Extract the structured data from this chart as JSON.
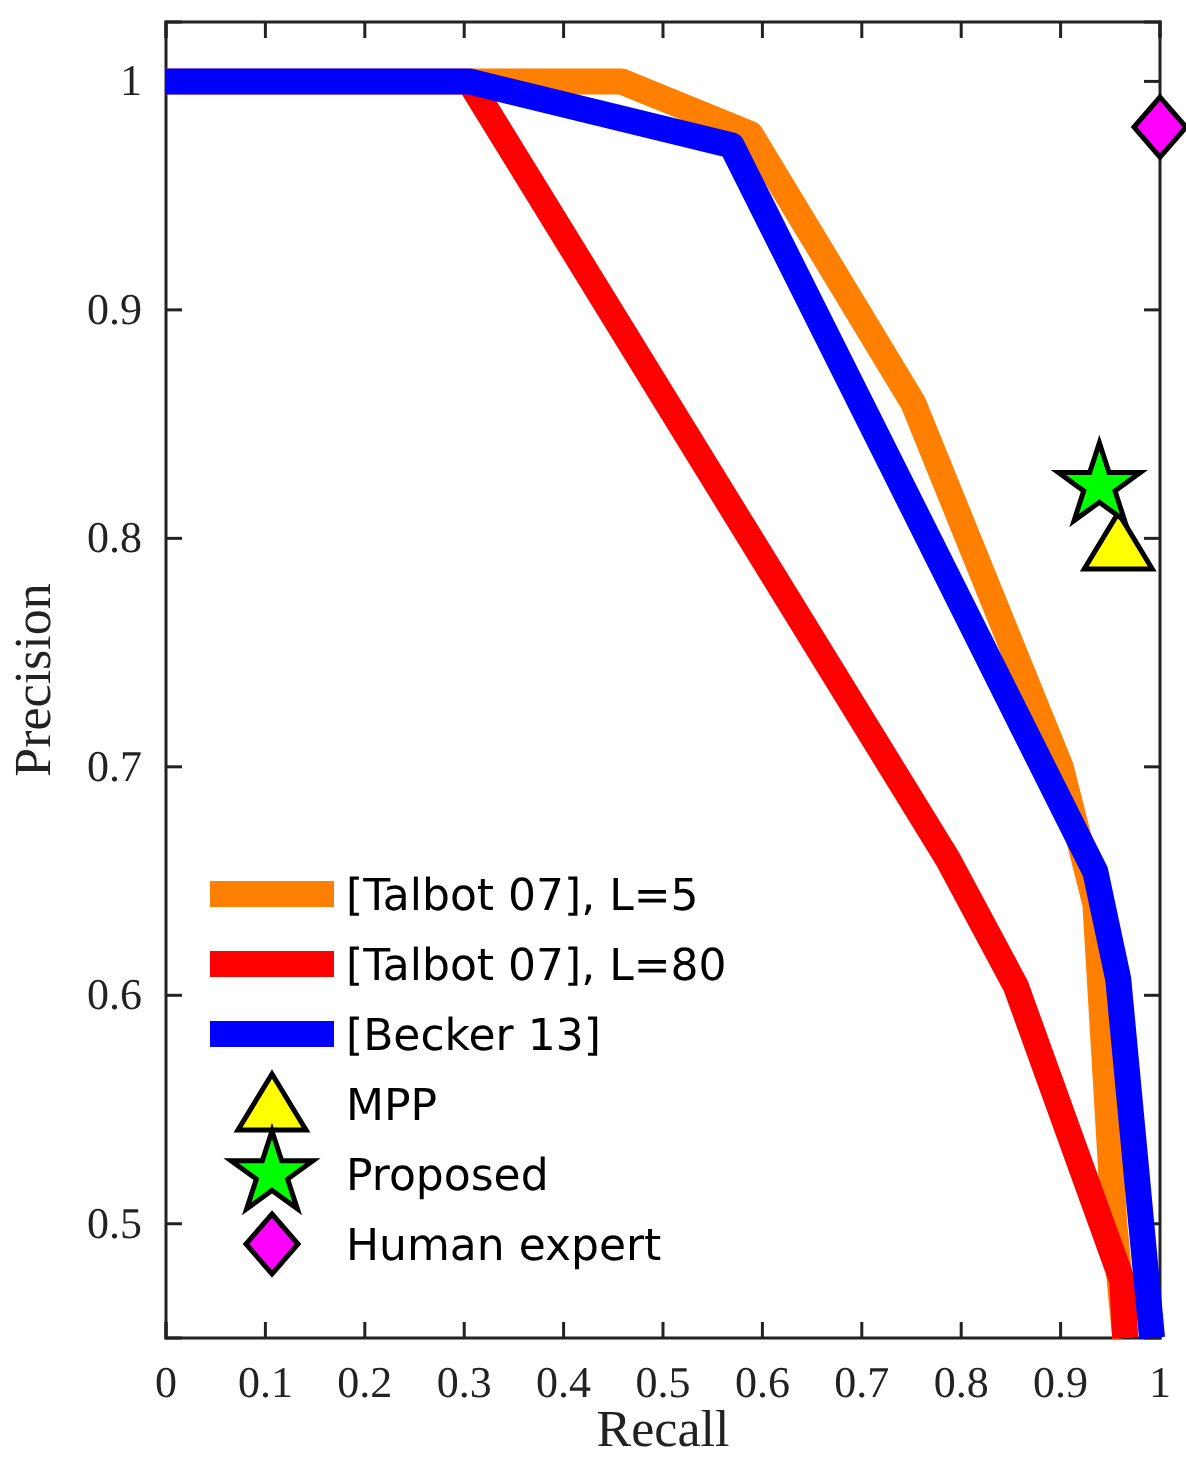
{
  "chart_data": {
    "type": "line",
    "xlabel": "Recall",
    "ylabel": "Precision",
    "xlim": [
      0,
      1
    ],
    "ylim": [
      0.45,
      1.026
    ],
    "xticks": [
      0,
      0.1,
      0.2,
      0.3,
      0.4,
      0.5,
      0.6,
      0.7,
      0.8,
      0.9,
      1
    ],
    "yticks": [
      0.5,
      0.6,
      0.7,
      0.8,
      0.9,
      1
    ],
    "grid": false,
    "legend": "bottom left",
    "series": [
      {
        "name": "[Talbot 07], L=5",
        "color": "#ff7f00",
        "x": [
          0,
          0.458,
          0.588,
          0.752,
          0.9,
          0.935,
          0.954,
          0.965
        ],
        "values": [
          1,
          1,
          0.977,
          0.859,
          0.7,
          0.64,
          0.5,
          0.45
        ]
      },
      {
        "name": "[Talbot 07], L=80",
        "color": "#ff0000",
        "x": [
          0.305,
          0.786,
          0.855,
          0.962,
          0.965
        ],
        "values": [
          1,
          0.66,
          0.604,
          0.475,
          0.45
        ]
      },
      {
        "name": "[Becker 13]",
        "color": "#0000ff",
        "x": [
          0,
          0.305,
          0.569,
          0.935,
          0.958,
          0.992
        ],
        "values": [
          1,
          1,
          0.972,
          0.654,
          0.607,
          0.45
        ]
      },
      {
        "name": "MPP",
        "type": "scatter",
        "marker": "triangle",
        "color": "#ffff00",
        "x": [
          0.958
        ],
        "values": [
          0.798
        ]
      },
      {
        "name": "Proposed",
        "type": "scatter",
        "marker": "star",
        "color": "#00ff00",
        "x": [
          0.939
        ],
        "values": [
          0.823
        ]
      },
      {
        "name": "Human expert",
        "type": "scatter",
        "marker": "diamond",
        "color": "#ff00ff",
        "x": [
          1.0
        ],
        "values": [
          0.98
        ]
      }
    ]
  }
}
